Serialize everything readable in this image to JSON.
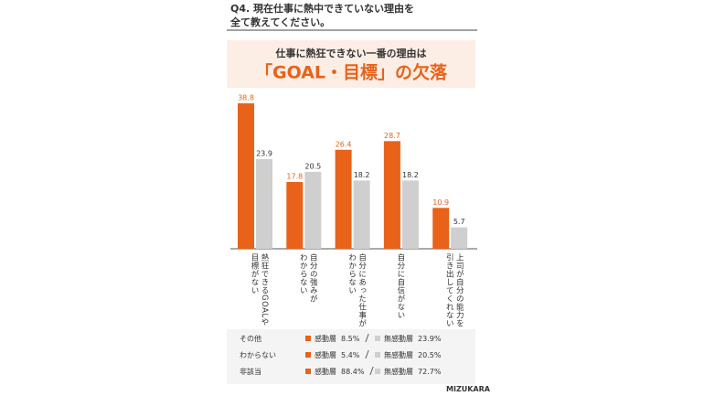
{
  "chart_data": {
    "type": "bar",
    "question": "Q4. 現在仕事に熱中できていない理由を\n全て教えてください。",
    "subtitle": "仕事に熱狂できない一番の理由は",
    "title": "「GOAL・目標」の欠落",
    "categories": [
      "熱狂できるGOALや\n目標がない",
      "自分の強みが\nわからない",
      "自分にあった仕事が\nわからない",
      "自分に自信がない",
      "上司が自分の能力を\n引き出してくれない"
    ],
    "series": [
      {
        "name": "感動層",
        "color": "#e8621a",
        "values": [
          38.8,
          17.8,
          26.4,
          28.7,
          10.9
        ]
      },
      {
        "name": "無感動層",
        "color": "#cfcfcf",
        "values": [
          23.9,
          20.5,
          18.2,
          18.2,
          5.7
        ]
      }
    ],
    "other_responses": [
      {
        "label": "その他",
        "values": [
          8.5,
          23.9
        ],
        "value_labels": [
          "8.5%",
          "23.9%"
        ]
      },
      {
        "label": "わからない",
        "values": [
          5.4,
          20.5
        ],
        "value_labels": [
          "5.4%",
          "20.5%"
        ]
      },
      {
        "label": "非該当",
        "values": [
          88.4,
          72.7
        ],
        "value_labels": [
          "88.4%",
          "72.7%"
        ]
      }
    ],
    "brand": "MIZUKARA"
  }
}
